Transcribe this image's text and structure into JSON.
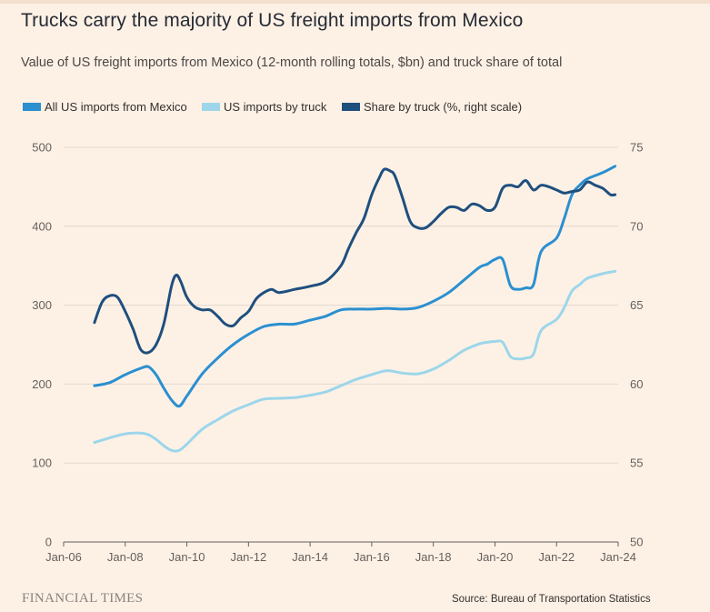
{
  "header": {
    "title": "Trucks carry the majority of US freight imports from Mexico",
    "subtitle": "Value of US freight imports from Mexico (12-month rolling totals, $bn) and truck share of total"
  },
  "footer": {
    "logo": "FINANCIAL TIMES",
    "source": "Source: Bureau of Transportation Statistics"
  },
  "chart_data": {
    "type": "line",
    "title": "Trucks carry the majority of US freight imports from Mexico",
    "subtitle": "Value of US freight imports from Mexico (12-month rolling totals, $bn) and truck share of total",
    "legend_position": "top-left",
    "grid": true,
    "x_axis": {
      "range": [
        2006,
        2024
      ],
      "ticks": [
        2006,
        2008,
        2010,
        2012,
        2014,
        2016,
        2018,
        2020,
        2022,
        2024
      ],
      "tick_labels": [
        "Jan-06",
        "Jan-08",
        "Jan-10",
        "Jan-12",
        "Jan-14",
        "Jan-16",
        "Jan-18",
        "Jan-20",
        "Jan-22",
        "Jan-24"
      ]
    },
    "y_axis_left": {
      "range": [
        0,
        500
      ],
      "ticks": [
        0,
        100,
        200,
        300,
        400,
        500
      ],
      "tick_labels": [
        "0",
        "100",
        "200",
        "300",
        "400",
        "500"
      ]
    },
    "y_axis_right": {
      "range": [
        50,
        75
      ],
      "ticks": [
        50,
        55,
        60,
        65,
        70,
        75
      ],
      "tick_labels": [
        "50",
        "55",
        "60",
        "65",
        "70",
        "75"
      ]
    },
    "series": [
      {
        "name": "All US imports from Mexico",
        "axis": "left",
        "color": "#2b8fd0",
        "x": [
          2007.0,
          2007.5,
          2008.0,
          2008.5,
          2008.75,
          2009.0,
          2009.25,
          2009.5,
          2009.75,
          2010.0,
          2010.5,
          2011.0,
          2011.5,
          2012.0,
          2012.5,
          2013.0,
          2013.5,
          2014.0,
          2014.5,
          2015.0,
          2015.5,
          2016.0,
          2016.5,
          2017.0,
          2017.5,
          2018.0,
          2018.5,
          2019.0,
          2019.5,
          2019.75,
          2020.0,
          2020.25,
          2020.5,
          2020.75,
          2021.0,
          2021.25,
          2021.5,
          2022.0,
          2022.25,
          2022.5,
          2022.75,
          2023.0,
          2023.5,
          2023.9
        ],
        "values": [
          198,
          202,
          212,
          220,
          222,
          212,
          195,
          180,
          172,
          185,
          213,
          233,
          250,
          263,
          273,
          276,
          276,
          281,
          286,
          294,
          295,
          295,
          296,
          295,
          297,
          305,
          316,
          332,
          348,
          352,
          358,
          358,
          325,
          320,
          322,
          326,
          368,
          385,
          410,
          440,
          452,
          460,
          468,
          476
        ]
      },
      {
        "name": "US imports by truck",
        "axis": "left",
        "color": "#9dd6ea",
        "x": [
          2007.0,
          2007.5,
          2008.0,
          2008.5,
          2008.75,
          2009.0,
          2009.25,
          2009.5,
          2009.75,
          2010.0,
          2010.5,
          2011.0,
          2011.5,
          2012.0,
          2012.5,
          2013.0,
          2013.5,
          2014.0,
          2014.5,
          2015.0,
          2015.5,
          2016.0,
          2016.5,
          2017.0,
          2017.5,
          2018.0,
          2018.5,
          2019.0,
          2019.5,
          2019.75,
          2020.0,
          2020.25,
          2020.5,
          2020.75,
          2021.0,
          2021.25,
          2021.5,
          2022.0,
          2022.25,
          2022.5,
          2022.75,
          2023.0,
          2023.5,
          2023.9
        ],
        "values": [
          126,
          132,
          137,
          138,
          136,
          130,
          122,
          116,
          116,
          124,
          143,
          155,
          166,
          174,
          181,
          182,
          183,
          186,
          190,
          198,
          206,
          212,
          217,
          214,
          213,
          219,
          230,
          243,
          251,
          253,
          254,
          253,
          235,
          232,
          233,
          238,
          268,
          282,
          297,
          318,
          326,
          334,
          340,
          343
        ]
      },
      {
        "name": "Share by truck (%, right scale)",
        "axis": "right",
        "color": "#1f4f7e",
        "x": [
          2007.0,
          2007.25,
          2007.5,
          2007.75,
          2008.0,
          2008.25,
          2008.5,
          2008.75,
          2009.0,
          2009.25,
          2009.5,
          2009.65,
          2009.8,
          2010.0,
          2010.25,
          2010.5,
          2010.75,
          2011.0,
          2011.25,
          2011.5,
          2011.75,
          2012.0,
          2012.25,
          2012.5,
          2012.75,
          2013.0,
          2013.5,
          2014.0,
          2014.5,
          2015.0,
          2015.25,
          2015.5,
          2015.75,
          2016.0,
          2016.25,
          2016.4,
          2016.6,
          2016.75,
          2017.0,
          2017.25,
          2017.5,
          2017.75,
          2018.0,
          2018.25,
          2018.5,
          2018.75,
          2019.0,
          2019.25,
          2019.5,
          2019.75,
          2020.0,
          2020.25,
          2020.5,
          2020.75,
          2021.0,
          2021.25,
          2021.5,
          2021.75,
          2022.0,
          2022.25,
          2022.5,
          2022.75,
          2023.0,
          2023.25,
          2023.5,
          2023.75,
          2023.9
        ],
        "values": [
          63.9,
          65.2,
          65.6,
          65.5,
          64.6,
          63.5,
          62.2,
          62.0,
          62.5,
          63.8,
          66.2,
          66.9,
          66.5,
          65.5,
          64.9,
          64.7,
          64.7,
          64.3,
          63.8,
          63.7,
          64.2,
          64.6,
          65.4,
          65.8,
          66.0,
          65.8,
          66.0,
          66.2,
          66.5,
          67.5,
          68.6,
          69.6,
          70.5,
          72.0,
          73.1,
          73.6,
          73.5,
          73.2,
          71.8,
          70.3,
          69.9,
          69.9,
          70.3,
          70.8,
          71.2,
          71.2,
          71.0,
          71.4,
          71.3,
          71.0,
          71.2,
          72.4,
          72.6,
          72.5,
          72.9,
          72.3,
          72.6,
          72.5,
          72.3,
          72.1,
          72.2,
          72.3,
          72.8,
          72.6,
          72.4,
          72.0,
          72.0
        ]
      }
    ]
  }
}
